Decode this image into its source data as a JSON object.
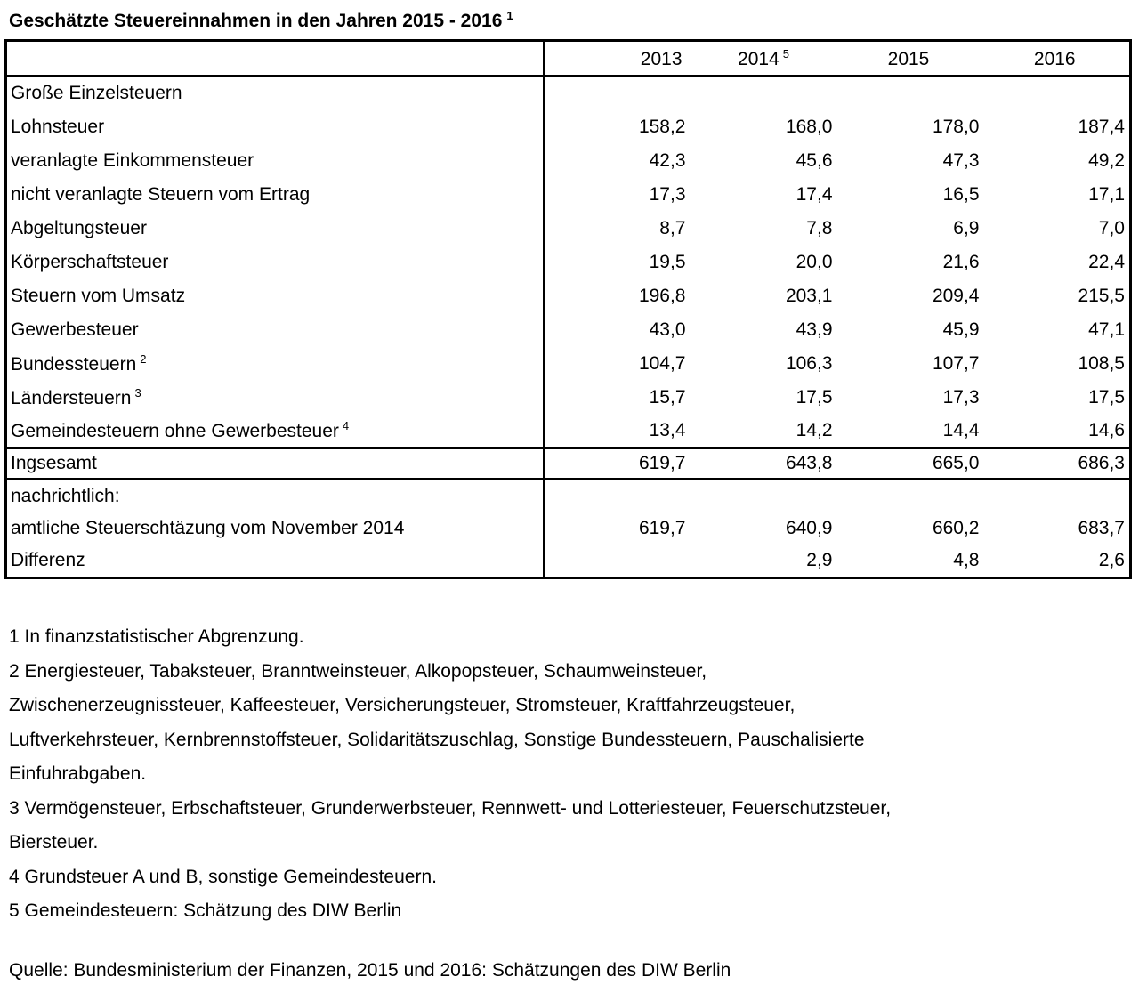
{
  "title": {
    "text": "Geschätzte Steuereinnahmen in den Jahren 2015 - 2016",
    "sup": "1"
  },
  "table": {
    "year_headers": [
      {
        "label": "2013",
        "sup": ""
      },
      {
        "label": "2014",
        "sup": "5"
      },
      {
        "label": "2015",
        "sup": ""
      },
      {
        "label": "2016",
        "sup": ""
      }
    ],
    "sections": [
      {
        "name": "grosse-einzelsteuern",
        "rows": [
          {
            "label": "Große Einzelsteuern",
            "sup": "",
            "values": [
              "",
              "",
              "",
              ""
            ]
          },
          {
            "label": "Lohnsteuer",
            "sup": "",
            "values": [
              "158,2",
              "168,0",
              "178,0",
              "187,4"
            ]
          },
          {
            "label": "veranlagte Einkommensteuer",
            "sup": "",
            "values": [
              "42,3",
              "45,6",
              "47,3",
              "49,2"
            ]
          },
          {
            "label": "nicht veranlagte Steuern vom Ertrag",
            "sup": "",
            "values": [
              "17,3",
              "17,4",
              "16,5",
              "17,1"
            ]
          },
          {
            "label": "Abgeltungsteuer",
            "sup": "",
            "values": [
              "8,7",
              "7,8",
              "6,9",
              "7,0"
            ]
          },
          {
            "label": "Körperschaftsteuer",
            "sup": "",
            "values": [
              "19,5",
              "20,0",
              "21,6",
              "22,4"
            ]
          },
          {
            "label": "Steuern vom Umsatz",
            "sup": "",
            "values": [
              "196,8",
              "203,1",
              "209,4",
              "215,5"
            ]
          },
          {
            "label": "Gewerbesteuer",
            "sup": "",
            "values": [
              "43,0",
              "43,9",
              "45,9",
              "47,1"
            ]
          },
          {
            "label": "Bundessteuern",
            "sup": "2",
            "values": [
              "104,7",
              "106,3",
              "107,7",
              "108,5"
            ]
          },
          {
            "label": "Ländersteuern",
            "sup": "3",
            "values": [
              "15,7",
              "17,5",
              "17,3",
              "17,5"
            ]
          },
          {
            "label": "Gemeindesteuern ohne Gewerbesteuer",
            "sup": "4",
            "values": [
              "13,4",
              "14,2",
              "14,4",
              "14,6"
            ]
          }
        ]
      },
      {
        "name": "total",
        "rows": [
          {
            "label": "Ingsesamt",
            "sup": "",
            "values": [
              "619,7",
              "643,8",
              "665,0",
              "686,3"
            ]
          }
        ]
      },
      {
        "name": "nachrichtlich",
        "rows": [
          {
            "label": "nachrichtlich:",
            "sup": "",
            "values": [
              "",
              "",
              "",
              ""
            ]
          },
          {
            "label": "amtliche Steuerschtäzung vom November 2014",
            "sup": "",
            "values": [
              "619,7",
              "640,9",
              "660,2",
              "683,7"
            ]
          },
          {
            "label": "Differenz",
            "sup": "",
            "values": [
              "",
              "2,9",
              "4,8",
              "2,6"
            ]
          }
        ]
      }
    ]
  },
  "footnotes": [
    {
      "lines": [
        "1 In finanzstatistischer Abgrenzung."
      ]
    },
    {
      "lines": [
        "2 Energiesteuer, Tabaksteuer, Branntweinsteuer, Alkopopsteuer, Schaumweinsteuer,",
        "Zwischenerzeugnissteuer, Kaffeesteuer, Versicherungsteuer, Stromsteuer, Kraftfahrzeugsteuer,",
        "Luftverkehrsteuer, Kernbrennstoffsteuer, Solidaritätszuschlag, Sonstige Bundessteuern, Pauschalisierte",
        "Einfuhrabgaben."
      ]
    },
    {
      "lines": [
        "3 Vermögensteuer, Erbschaftsteuer, Grunderwerbsteuer, Rennwett- und Lotteriesteuer, Feuerschutzsteuer,",
        "Biersteuer."
      ]
    },
    {
      "lines": [
        "4 Grundsteuer A und B, sonstige Gemeindesteuern."
      ]
    },
    {
      "lines": [
        "5 Gemeindesteuern: Schätzung des DIW Berlin"
      ]
    }
  ],
  "source": "Quelle: Bundesministerium der Finanzen, 2015 und 2016: Schätzungen des DIW Berlin"
}
